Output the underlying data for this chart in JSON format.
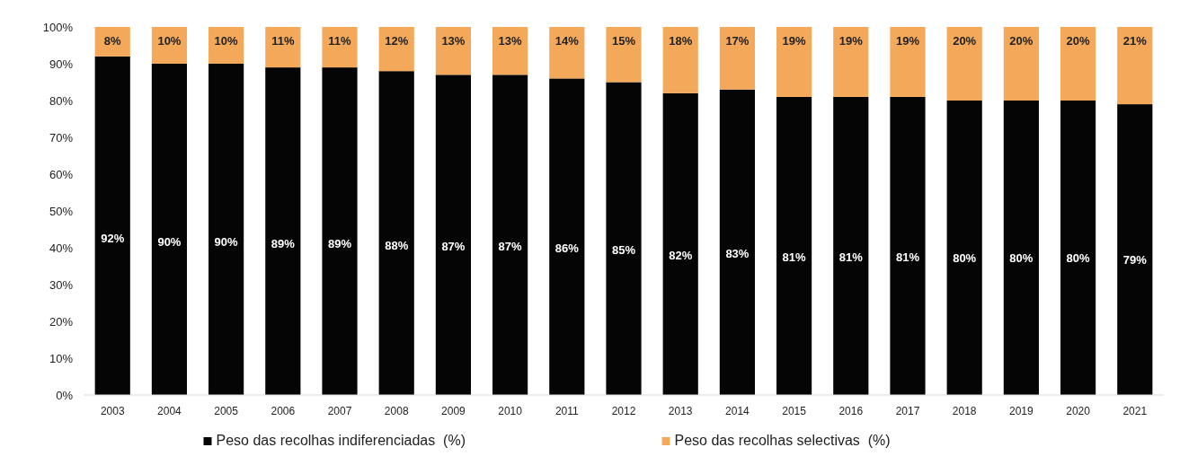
{
  "chart_data": {
    "type": "bar",
    "stacked": true,
    "categories": [
      "2003",
      "2004",
      "2005",
      "2006",
      "2007",
      "2008",
      "2009",
      "2010",
      "2011",
      "2012",
      "2013",
      "2014",
      "2015",
      "2016",
      "2017",
      "2018",
      "2019",
      "2020",
      "2021"
    ],
    "series": [
      {
        "name": "Peso das recolhas indiferenciadas  (%)",
        "color": "#050505",
        "values": [
          92,
          90,
          90,
          89,
          89,
          88,
          87,
          87,
          86,
          85,
          82,
          83,
          81,
          81,
          81,
          80,
          80,
          80,
          79
        ],
        "value_labels": [
          "92%",
          "90%",
          "90%",
          "89%",
          "89%",
          "88%",
          "87%",
          "87%",
          "86%",
          "85%",
          "82%",
          "83%",
          "81%",
          "81%",
          "81%",
          "80%",
          "80%",
          "80%",
          "79%"
        ]
      },
      {
        "name": "Peso das recolhas selectivas  (%)",
        "color": "#f4a95a",
        "values": [
          8,
          10,
          10,
          11,
          11,
          12,
          13,
          13,
          14,
          15,
          18,
          17,
          19,
          19,
          19,
          20,
          20,
          20,
          21
        ],
        "value_labels": [
          "8%",
          "10%",
          "10%",
          "11%",
          "11%",
          "12%",
          "13%",
          "13%",
          "14%",
          "15%",
          "18%",
          "17%",
          "19%",
          "19%",
          "19%",
          "20%",
          "20%",
          "20%",
          "21%"
        ]
      }
    ],
    "ylim": [
      0,
      100
    ],
    "yticks": [
      {
        "value": 0,
        "label": "0%"
      },
      {
        "value": 10,
        "label": "10%"
      },
      {
        "value": 20,
        "label": "20%"
      },
      {
        "value": 30,
        "label": "30%"
      },
      {
        "value": 40,
        "label": "40%"
      },
      {
        "value": 50,
        "label": "50%"
      },
      {
        "value": 60,
        "label": "60%"
      },
      {
        "value": 70,
        "label": "70%"
      },
      {
        "value": 80,
        "label": "80%"
      },
      {
        "value": 90,
        "label": "90%"
      },
      {
        "value": 100,
        "label": "100%"
      }
    ],
    "legend": "bottom"
  }
}
